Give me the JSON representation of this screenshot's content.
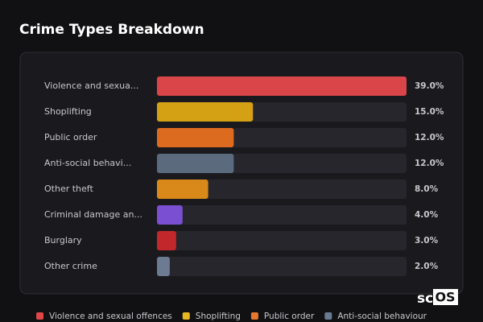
{
  "chart_data": {
    "type": "bar",
    "orientation": "horizontal",
    "title": "Crime Types Breakdown",
    "categories": [
      "Violence and sexua...",
      "Shoplifting",
      "Public order",
      "Anti-social behavi...",
      "Other theft",
      "Criminal damage an...",
      "Burglary",
      "Other crime"
    ],
    "values": [
      39,
      15,
      12,
      12,
      8,
      4,
      3,
      2
    ],
    "value_labels": [
      "39.0%",
      "15.0%",
      "12.0%",
      "12.0%",
      "8.0%",
      "4.0%",
      "3.0%",
      "2.0%"
    ],
    "colors": [
      "#d94548",
      "#d4a114",
      "#dd6b1f",
      "#5c6a7e",
      "#d9891a",
      "#7a4fd2",
      "#c2282b",
      "#6c7a92"
    ],
    "xlim": [
      0,
      39
    ],
    "legend": [
      {
        "name": "Violence and sexual offences",
        "color": "#e04548"
      },
      {
        "name": "Shoplifting",
        "color": "#e8b820"
      },
      {
        "name": "Public order",
        "color": "#e8782e"
      },
      {
        "name": "Anti-social behaviour",
        "color": "#6a7a90"
      }
    ]
  },
  "logo": {
    "text": "sc",
    "boxed": "OS"
  }
}
